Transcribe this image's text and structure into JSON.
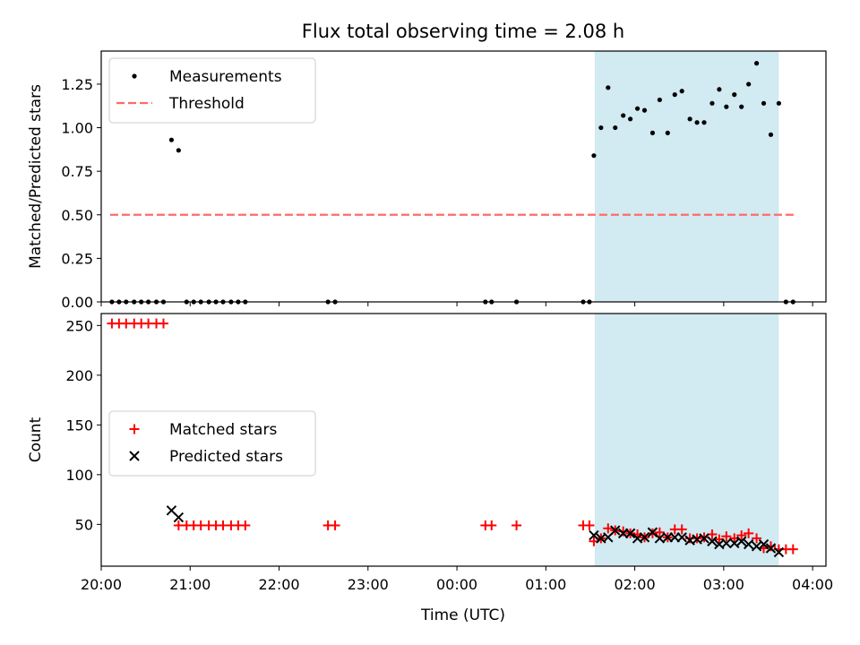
{
  "title": "Flux total observing time = 2.08 h",
  "chart_data": [
    {
      "panel": "top",
      "type": "scatter",
      "ylabel": "Matched/Predicted stars",
      "xlim": [
        20.0,
        28.15
      ],
      "ylim": [
        0,
        1.44
      ],
      "yticks": [
        0.0,
        0.25,
        0.5,
        0.75,
        1.0,
        1.25
      ],
      "ytick_labels": [
        "0.00",
        "0.25",
        "0.50",
        "0.75",
        "1.00",
        "1.25"
      ],
      "shaded_span": {
        "start": 25.55,
        "end": 27.62,
        "color": "#add8e6"
      },
      "threshold": {
        "name": "Threshold",
        "y": 0.5,
        "x": [
          20.1,
          27.8
        ],
        "color": "#ff6a6a",
        "style": "dashed"
      },
      "legend": {
        "position": "upper left",
        "entries": [
          "Measurements",
          "Threshold"
        ]
      },
      "series": [
        {
          "name": "Measurements",
          "color": "#000000",
          "marker": "dot",
          "x": [
            20.12,
            20.2,
            20.28,
            20.37,
            20.45,
            20.53,
            20.62,
            20.7,
            20.79,
            20.87,
            20.96,
            21.04,
            21.12,
            21.21,
            21.29,
            21.37,
            21.46,
            21.54,
            21.62,
            22.55,
            22.63,
            24.32,
            24.39,
            24.67,
            25.42,
            25.49,
            25.54,
            25.62,
            25.7,
            25.78,
            25.87,
            25.95,
            26.03,
            26.11,
            26.2,
            26.28,
            26.37,
            26.45,
            26.53,
            26.62,
            26.7,
            26.78,
            26.87,
            26.95,
            27.03,
            27.12,
            27.2,
            27.28,
            27.37,
            27.45,
            27.53,
            27.62,
            27.7,
            27.78
          ],
          "y": [
            0,
            0,
            0,
            0,
            0,
            0,
            0,
            0,
            0.93,
            0.87,
            0,
            0,
            0,
            0,
            0,
            0,
            0,
            0,
            0,
            0,
            0,
            0,
            0,
            0,
            0,
            0,
            0.84,
            1.0,
            1.23,
            1.0,
            1.07,
            1.05,
            1.11,
            1.1,
            0.97,
            1.16,
            0.97,
            1.19,
            1.21,
            1.05,
            1.03,
            1.03,
            1.14,
            1.22,
            1.12,
            1.19,
            1.12,
            1.25,
            1.37,
            1.14,
            0.96,
            1.14,
            0,
            0
          ]
        }
      ]
    },
    {
      "panel": "bottom",
      "type": "scatter",
      "xlabel": "Time (UTC)",
      "ylabel": "Count",
      "xlim": [
        20.0,
        28.15
      ],
      "ylim": [
        8,
        262
      ],
      "yticks": [
        50,
        100,
        150,
        200,
        250
      ],
      "ytick_labels": [
        "50",
        "100",
        "150",
        "200",
        "250"
      ],
      "xticks": [
        20,
        21,
        22,
        23,
        24,
        25,
        26,
        27,
        28
      ],
      "xtick_labels": [
        "20:00",
        "21:00",
        "22:00",
        "23:00",
        "00:00",
        "01:00",
        "02:00",
        "03:00",
        "04:00"
      ],
      "shaded_span": {
        "start": 25.55,
        "end": 27.62,
        "color": "#add8e6"
      },
      "legend": {
        "position": "center left",
        "entries": [
          "Matched stars",
          "Predicted stars"
        ]
      },
      "series": [
        {
          "name": "Matched stars",
          "color": "#ff0000",
          "marker": "plus",
          "x": [
            20.12,
            20.2,
            20.28,
            20.37,
            20.45,
            20.53,
            20.62,
            20.7,
            20.87,
            20.96,
            21.04,
            21.12,
            21.21,
            21.29,
            21.37,
            21.46,
            21.54,
            21.62,
            22.55,
            22.63,
            24.32,
            24.39,
            24.67,
            25.42,
            25.49,
            25.54,
            25.62,
            25.7,
            25.78,
            25.87,
            25.95,
            26.03,
            26.11,
            26.2,
            26.28,
            26.37,
            26.45,
            26.53,
            26.62,
            26.7,
            26.78,
            26.87,
            26.95,
            27.03,
            27.12,
            27.2,
            27.28,
            27.37,
            27.45,
            27.53,
            27.62,
            27.7,
            27.78
          ],
          "y": [
            252,
            252,
            252,
            252,
            252,
            252,
            252,
            252,
            49,
            49,
            49,
            49,
            49,
            49,
            49,
            49,
            49,
            49,
            49,
            49,
            49,
            49,
            49,
            49,
            49,
            33,
            36,
            46,
            44,
            43,
            41,
            40,
            37,
            41,
            42,
            37,
            45,
            45,
            36,
            36,
            37,
            40,
            35,
            38,
            36,
            39,
            41,
            36,
            26,
            28,
            25,
            25,
            25
          ]
        },
        {
          "name": "Predicted stars",
          "color": "#000000",
          "marker": "x",
          "x": [
            20.79,
            20.87,
            25.54,
            25.62,
            25.7,
            25.78,
            25.87,
            25.95,
            26.03,
            26.11,
            26.2,
            26.28,
            26.37,
            26.45,
            26.53,
            26.62,
            26.7,
            26.78,
            26.87,
            26.95,
            27.03,
            27.12,
            27.2,
            27.28,
            27.37,
            27.45,
            27.53,
            27.62
          ],
          "y": [
            64,
            57,
            39,
            36,
            37,
            44,
            41,
            41,
            36,
            37,
            42,
            36,
            37,
            37,
            37,
            34,
            35,
            36,
            33,
            30,
            31,
            31,
            33,
            30,
            28,
            30,
            26,
            22
          ]
        }
      ]
    }
  ]
}
